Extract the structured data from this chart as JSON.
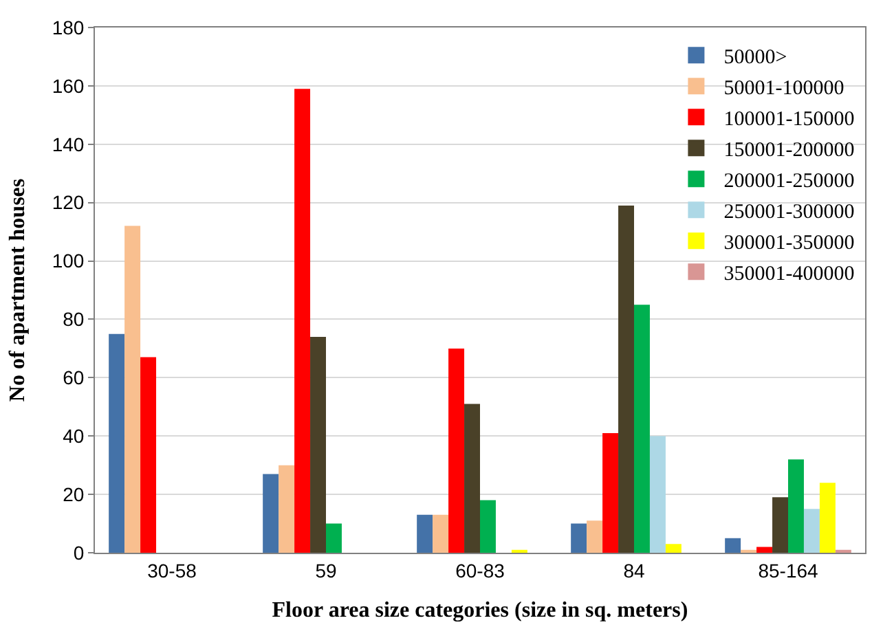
{
  "chart_data": {
    "type": "bar",
    "xlabel": "Floor area size categories (size in sq. meters)",
    "ylabel": "No of apartment houses",
    "categories": [
      "30-58",
      "59",
      "60-83",
      "84",
      "85-164"
    ],
    "series": [
      {
        "name": "50000>",
        "color": "#4472a8",
        "values": [
          75,
          27,
          13,
          10,
          5
        ]
      },
      {
        "name": "50001-100000",
        "color": "#f9bf8f",
        "values": [
          112,
          30,
          13,
          11,
          1
        ]
      },
      {
        "name": "100001-150000",
        "color": "#ff0000",
        "values": [
          67,
          159,
          70,
          41,
          2
        ]
      },
      {
        "name": "150001-200000",
        "color": "#4a4128",
        "values": [
          0,
          74,
          51,
          119,
          19
        ]
      },
      {
        "name": "200001-250000",
        "color": "#00b050",
        "values": [
          0,
          10,
          18,
          85,
          32
        ]
      },
      {
        "name": "250001-300000",
        "color": "#add8e6",
        "values": [
          0,
          0,
          0,
          40,
          15
        ]
      },
      {
        "name": "300001-350000",
        "color": "#ffff00",
        "values": [
          0,
          0,
          1,
          3,
          24
        ]
      },
      {
        "name": "350001-400000",
        "color": "#d99694",
        "values": [
          0,
          0,
          0,
          0,
          1
        ]
      }
    ],
    "ylim": [
      0,
      180
    ],
    "yticks": [
      0,
      20,
      40,
      60,
      80,
      100,
      120,
      140,
      160,
      180
    ],
    "grid": "y",
    "legend": "top right"
  }
}
